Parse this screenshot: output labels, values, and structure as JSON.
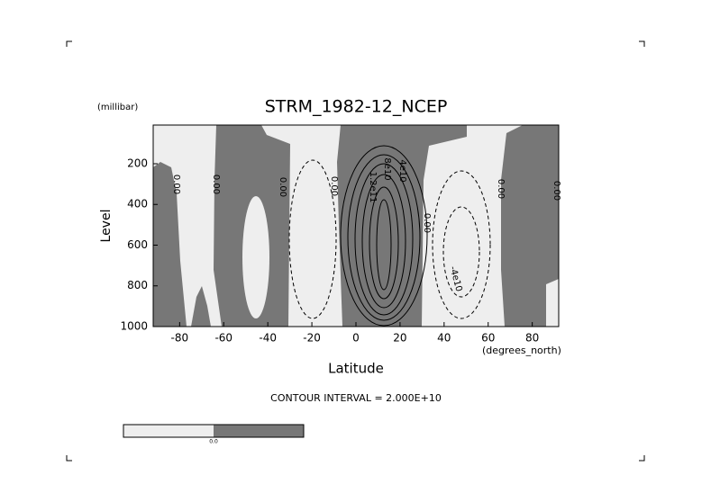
{
  "chart_data": {
    "type": "contour",
    "title": "STRM_1982-12_NCEP",
    "x_label": "Latitude",
    "x_unit": "(degrees_north)",
    "y_label": "Level",
    "y_unit": "(millibar)",
    "annotation": "CONTOUR INTERVAL = 2.000E+10",
    "xlim": [
      -92,
      92
    ],
    "xticks": [
      -80,
      -60,
      -40,
      -20,
      0,
      20,
      40,
      60,
      80
    ],
    "ylim": [
      1000,
      10
    ],
    "yticks": [
      200,
      400,
      600,
      800,
      1000
    ],
    "contour_labels": [
      "0.00",
      "0.00",
      "0.00",
      "0.00",
      "1.2e11",
      "8e10",
      "4e10",
      "0.00",
      "-4e10",
      "0.00",
      "0.00"
    ],
    "colorbar": {
      "colors": [
        "#eeeeee",
        "#777777"
      ],
      "labels": [
        "0.0"
      ]
    }
  }
}
